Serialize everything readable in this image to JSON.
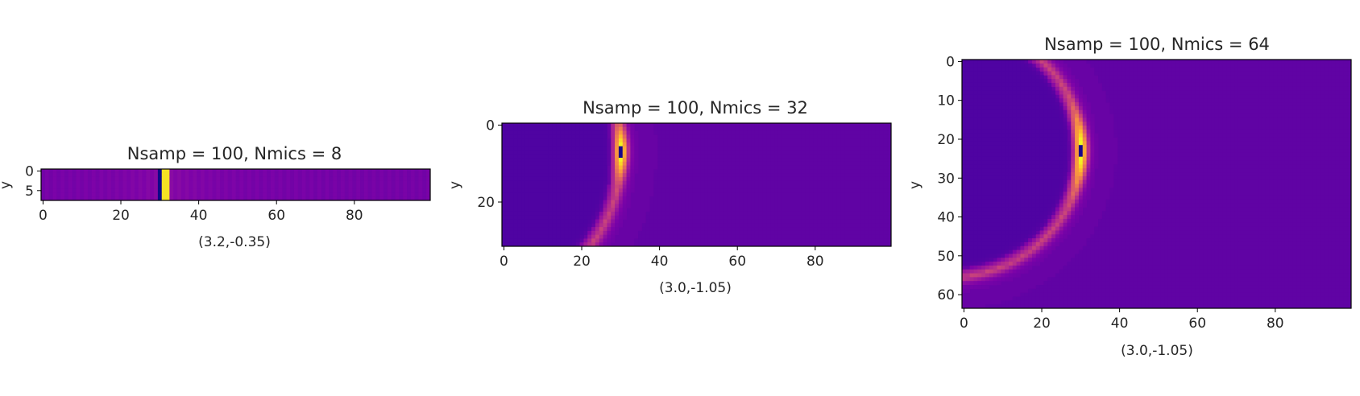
{
  "chart_data": [
    {
      "type": "heatmap",
      "title": "Nsamp = 100, Nmics = 8",
      "xlabel": "(3.2,-0.35)",
      "ylabel": "y",
      "nx": 100,
      "ny": 8,
      "xlim": [
        0,
        100
      ],
      "ylim": [
        8,
        0
      ],
      "xticks": [
        0,
        20,
        40,
        60,
        80
      ],
      "yticks": [
        0,
        5
      ],
      "colormap": "plasma",
      "source": {
        "x": 32,
        "y": 4,
        "pattern": "vertical-band"
      }
    },
    {
      "type": "heatmap",
      "title": "Nsamp = 100, Nmics = 32",
      "xlabel": "(3.0,-1.05)",
      "ylabel": "y",
      "nx": 100,
      "ny": 32,
      "xlim": [
        0,
        100
      ],
      "ylim": [
        32,
        0
      ],
      "xticks": [
        0,
        20,
        40,
        60,
        80
      ],
      "yticks": [
        0,
        20
      ],
      "colormap": "plasma",
      "source": {
        "x": 30,
        "y": 7,
        "pattern": "arc"
      }
    },
    {
      "type": "heatmap",
      "title": "Nsamp = 100, Nmics = 64",
      "xlabel": "(3.0,-1.05)",
      "ylabel": "y",
      "nx": 100,
      "ny": 64,
      "xlim": [
        0,
        100
      ],
      "ylim": [
        64,
        0
      ],
      "xticks": [
        0,
        20,
        40,
        60,
        80
      ],
      "yticks": [
        0,
        10,
        20,
        30,
        40,
        50,
        60
      ],
      "colormap": "plasma",
      "source": {
        "x": 30,
        "y": 23,
        "pattern": "arc"
      }
    }
  ]
}
